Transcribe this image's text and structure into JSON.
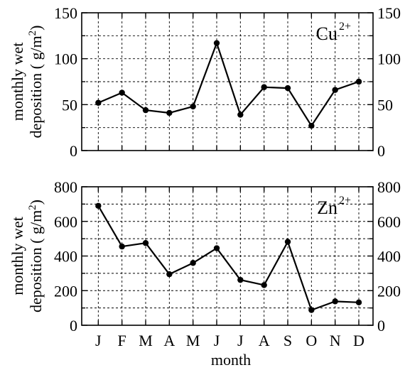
{
  "chart_data": [
    {
      "type": "line",
      "ion": "Cu",
      "charge": "2+",
      "categories": [
        "J",
        "F",
        "M",
        "A",
        "M",
        "J",
        "J",
        "A",
        "S",
        "O",
        "N",
        "D"
      ],
      "values": [
        52,
        63,
        44,
        41,
        48,
        117,
        39,
        69,
        68,
        27,
        66,
        75
      ],
      "ylim": [
        0,
        150
      ],
      "yticks": [
        0,
        50,
        100,
        150
      ],
      "ylabel_line1": "monthly wet",
      "ylabel_line2": "deposition (   g/m",
      "ylabel_sup": "2",
      "ylabel_end": ")",
      "grid": true
    },
    {
      "type": "line",
      "ion": "Zn",
      "charge": "2+",
      "categories": [
        "J",
        "F",
        "M",
        "A",
        "M",
        "J",
        "J",
        "A",
        "S",
        "O",
        "N",
        "D"
      ],
      "values": [
        690,
        455,
        475,
        295,
        360,
        445,
        262,
        232,
        482,
        88,
        138,
        132
      ],
      "ylim": [
        0,
        800
      ],
      "yticks": [
        0,
        200,
        400,
        600,
        800
      ],
      "ylabel_line1": "monthly wet",
      "ylabel_line2": "deposition (   g/m",
      "ylabel_sup": "2",
      "ylabel_end": ")",
      "grid": true
    }
  ],
  "xlabel": "month"
}
